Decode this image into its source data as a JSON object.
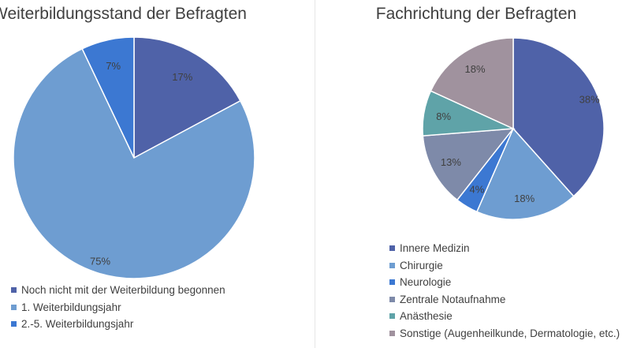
{
  "chart_data": [
    {
      "type": "pie",
      "title": "Weiterbildungsstand der Befragten",
      "legend_position": "bottom",
      "start_angle_deg": 0,
      "slices": [
        {
          "label": "Noch nicht mit der Weiterbildung begonnen",
          "value": 17,
          "display": "17%",
          "color": "#4F62A8"
        },
        {
          "label": "1. Weiterbildungsjahr",
          "value": 75,
          "display": "75%",
          "color": "#6E9DD1"
        },
        {
          "label": "2.-5. Weiterbildungsjahr",
          "value": 7,
          "display": "7%",
          "color": "#3C78D2"
        }
      ]
    },
    {
      "type": "pie",
      "title": "Fachrichtung der Befragten",
      "legend_position": "bottom",
      "start_angle_deg": 0,
      "slices": [
        {
          "label": "Innere Medizin",
          "value": 38,
          "display": "38%",
          "color": "#4F62A8"
        },
        {
          "label": "Chirurgie",
          "value": 18,
          "display": "18%",
          "color": "#6E9DD1"
        },
        {
          "label": "Neurologie",
          "value": 4,
          "display": "4%",
          "color": "#3C78D2"
        },
        {
          "label": "Zentrale Notaufnahme",
          "value": 13,
          "display": "13%",
          "color": "#7E8AA9"
        },
        {
          "label": "Anästhesie",
          "value": 8,
          "display": "8%",
          "color": "#5FA3A8"
        },
        {
          "label": "Sonstige (Augenheilkunde, Dermatologie, etc.)",
          "value": 18,
          "display": "18%",
          "color": "#A0929E"
        }
      ]
    }
  ]
}
